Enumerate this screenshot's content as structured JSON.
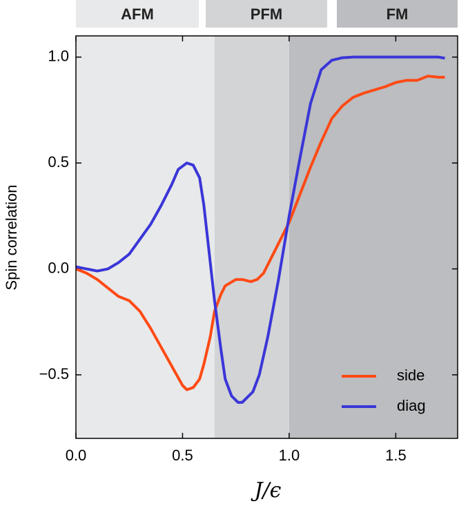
{
  "chart_data": {
    "type": "line",
    "x_label": "J/ϵ",
    "y_label": "Spin correlation",
    "xlim": [
      0,
      1.79
    ],
    "ylim": [
      -0.8,
      1.1
    ],
    "xticks": [
      {
        "value": 0,
        "label": "0.0"
      },
      {
        "value": 0.5,
        "label": "0.5"
      },
      {
        "value": 1,
        "label": "1.0"
      },
      {
        "value": 1.5,
        "label": "1.5"
      }
    ],
    "yticks": [
      {
        "value": -0.5,
        "label": "−0.5"
      },
      {
        "value": 0,
        "label": "0.0"
      },
      {
        "value": 0.5,
        "label": "0.5"
      },
      {
        "value": 1,
        "label": "1.0"
      }
    ],
    "legend": "lower right",
    "regions": [
      {
        "label": "AFM",
        "start": 0,
        "end": 0.65,
        "color": "#e8e9ea"
      },
      {
        "label": "PFM",
        "start": 0.65,
        "end": 1.0,
        "color": "#d2d4d6"
      },
      {
        "label": "FM",
        "start": 1.0,
        "end": 1.79,
        "color": "#bbbdc0"
      }
    ],
    "series": [
      {
        "name": "side",
        "color": "#ff4a14",
        "x": [
          0,
          0.05,
          0.1,
          0.15,
          0.2,
          0.25,
          0.3,
          0.35,
          0.4,
          0.45,
          0.5,
          0.52,
          0.55,
          0.58,
          0.6,
          0.63,
          0.65,
          0.68,
          0.7,
          0.75,
          0.78,
          0.82,
          0.85,
          0.88,
          0.9,
          0.95,
          1.0,
          1.05,
          1.1,
          1.15,
          1.2,
          1.25,
          1.3,
          1.35,
          1.4,
          1.45,
          1.5,
          1.55,
          1.6,
          1.65,
          1.7,
          1.73
        ],
        "values": [
          0,
          -0.02,
          -0.05,
          -0.09,
          -0.13,
          -0.15,
          -0.2,
          -0.28,
          -0.37,
          -0.46,
          -0.55,
          -0.57,
          -0.56,
          -0.52,
          -0.45,
          -0.32,
          -0.2,
          -0.12,
          -0.08,
          -0.05,
          -0.05,
          -0.06,
          -0.05,
          -0.02,
          0.02,
          0.12,
          0.22,
          0.35,
          0.48,
          0.6,
          0.71,
          0.77,
          0.81,
          0.83,
          0.845,
          0.86,
          0.88,
          0.89,
          0.89,
          0.91,
          0.905,
          0.905
        ]
      },
      {
        "name": "diag",
        "color": "#3a36d8",
        "x": [
          0,
          0.05,
          0.1,
          0.15,
          0.2,
          0.25,
          0.3,
          0.35,
          0.4,
          0.45,
          0.48,
          0.52,
          0.55,
          0.58,
          0.6,
          0.62,
          0.65,
          0.68,
          0.7,
          0.73,
          0.76,
          0.78,
          0.8,
          0.83,
          0.86,
          0.9,
          0.95,
          1.0,
          1.05,
          1.1,
          1.15,
          1.2,
          1.25,
          1.3,
          1.5,
          1.7,
          1.73
        ],
        "values": [
          0.01,
          0,
          -0.01,
          0,
          0.03,
          0.07,
          0.14,
          0.21,
          0.3,
          0.4,
          0.47,
          0.5,
          0.49,
          0.43,
          0.3,
          0.12,
          -0.15,
          -0.38,
          -0.52,
          -0.6,
          -0.63,
          -0.63,
          -0.61,
          -0.58,
          -0.5,
          -0.32,
          -0.05,
          0.25,
          0.52,
          0.78,
          0.94,
          0.985,
          0.997,
          1.0,
          1.0,
          1.0,
          0.995
        ]
      }
    ]
  }
}
